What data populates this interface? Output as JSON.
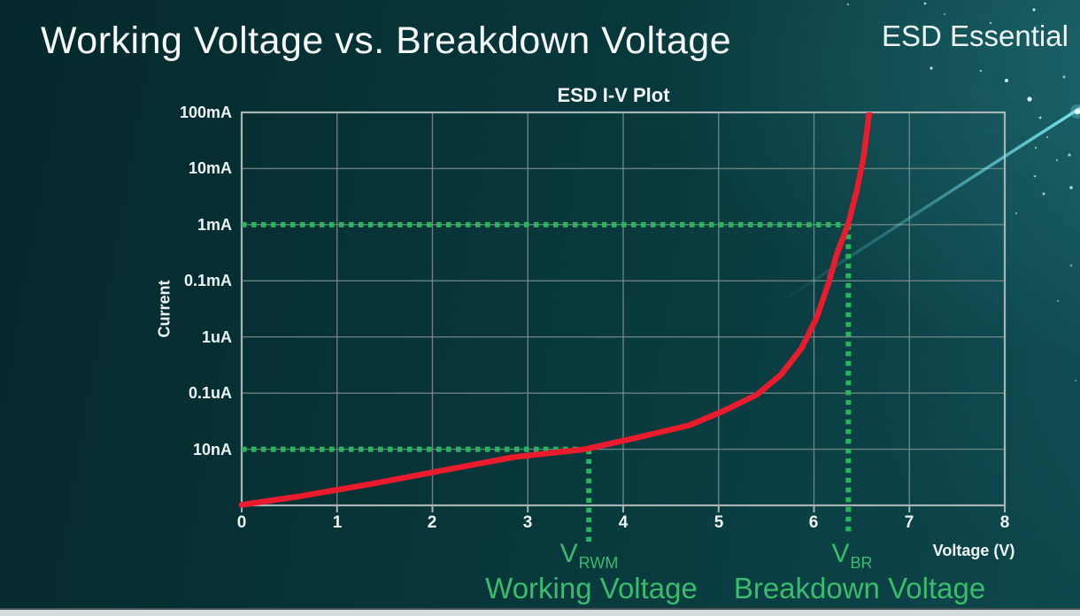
{
  "page": {
    "title": "Working Voltage vs. Breakdown Voltage",
    "brand": "ESD Essential"
  },
  "chart_data": {
    "type": "line",
    "title": "ESD I-V Plot",
    "xlabel": "Voltage (V)",
    "ylabel": "Current",
    "x_ticks": [
      "0",
      "1",
      "2",
      "3",
      "4",
      "5",
      "6",
      "7",
      "8"
    ],
    "x_range": [
      0,
      8
    ],
    "y_tick_labels": [
      "100mA",
      "10mA",
      "1mA",
      "0.1mA",
      "1uA",
      "0.1uA",
      "10nA"
    ],
    "y_axis_note": "stylized log current axis; one gridline per label from 100mA (top) down to 10nA, bottom axis one row below 10nA",
    "grid": true,
    "series": [
      {
        "name": "ESD device I-V curve",
        "color": "#ea1b2d",
        "points_v_row": [
          [
            0,
            6.99
          ],
          [
            0.6,
            6.84
          ],
          [
            1.35,
            6.62
          ],
          [
            2.1,
            6.38
          ],
          [
            2.85,
            6.14
          ],
          [
            3.6,
            6.0
          ],
          [
            4.15,
            5.79
          ],
          [
            4.7,
            5.57
          ],
          [
            5.05,
            5.32
          ],
          [
            5.4,
            5.03
          ],
          [
            5.65,
            4.68
          ],
          [
            5.87,
            4.2
          ],
          [
            6.03,
            3.65
          ],
          [
            6.15,
            3.05
          ],
          [
            6.24,
            2.52
          ],
          [
            6.36,
            1.98
          ],
          [
            6.45,
            1.38
          ],
          [
            6.52,
            0.8
          ],
          [
            6.58,
            0
          ]
        ]
      }
    ],
    "annotations": {
      "vrwm": {
        "symbol": "V",
        "subscript": "RWM",
        "caption": "Working Voltage",
        "voltage": 3.64,
        "current": "10nA"
      },
      "vbr": {
        "symbol": "V",
        "subscript": "BR",
        "caption": "Breakdown Voltage",
        "voltage": 6.36,
        "current": "1mA"
      },
      "guide_color": "#29b55b",
      "text_color": "#3abc6c"
    },
    "colors": {
      "curve_red": "#ea1b2d",
      "guide_green": "#29b55b",
      "label_green": "#3abc6c",
      "grid_gray": "#7e8e8e",
      "background_teal": "#083539",
      "swoosh_cyan": "#7ae9f6"
    }
  }
}
